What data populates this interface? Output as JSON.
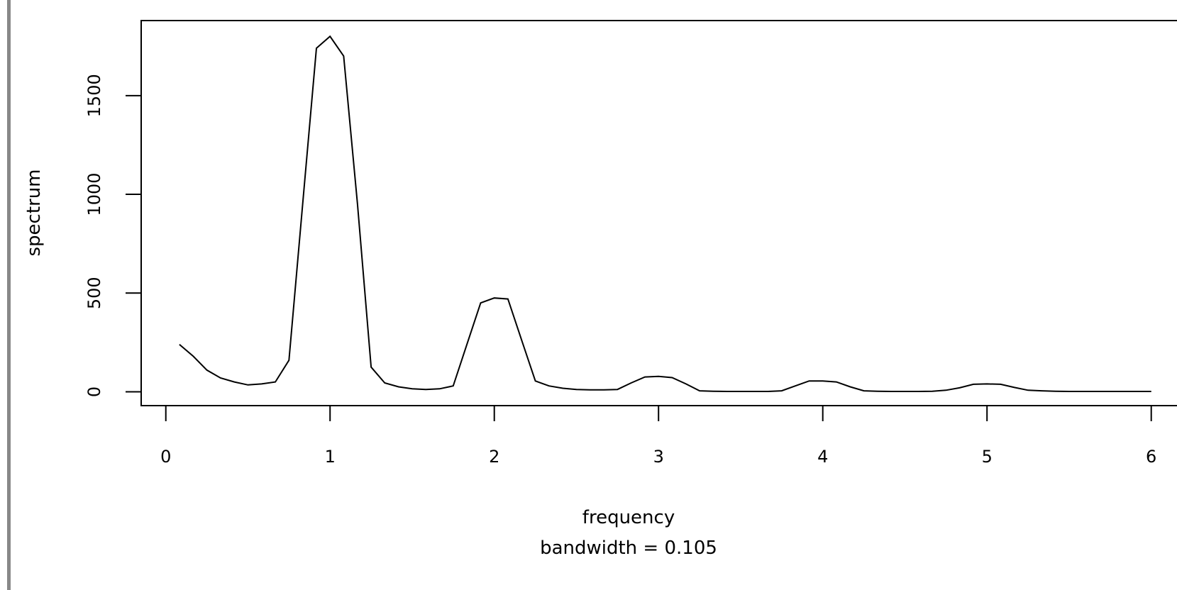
{
  "chart_data": {
    "type": "line",
    "title": "",
    "xlabel": "frequency",
    "sublabel": "bandwidth = 0.105",
    "ylabel": "spectrum",
    "xlim": [
      -0.15,
      6.2
    ],
    "ylim": [
      -70,
      1880
    ],
    "x_ticks": [
      "0",
      "1",
      "2",
      "3",
      "4",
      "5",
      "6"
    ],
    "y_ticks": [
      "0",
      "500",
      "1000",
      "1500"
    ],
    "grid": false,
    "series": [
      {
        "x": [
          0.083,
          0.167,
          0.25,
          0.333,
          0.417,
          0.5,
          0.583,
          0.667,
          0.75,
          0.833,
          0.917,
          1.0,
          1.083,
          1.167,
          1.25,
          1.333,
          1.417,
          1.5,
          1.583,
          1.667,
          1.75,
          1.833,
          1.917,
          2.0,
          2.083,
          2.167,
          2.25,
          2.333,
          2.417,
          2.5,
          2.583,
          2.667,
          2.75,
          2.833,
          2.917,
          3.0,
          3.083,
          3.167,
          3.25,
          3.333,
          3.417,
          3.5,
          3.583,
          3.667,
          3.75,
          3.833,
          3.917,
          4.0,
          4.083,
          4.167,
          4.25,
          4.333,
          4.417,
          4.5,
          4.583,
          4.667,
          4.75,
          4.833,
          4.917,
          5.0,
          5.083,
          5.167,
          5.25,
          5.333,
          5.417,
          5.5,
          5.583,
          5.667,
          5.75,
          5.833,
          5.917,
          6.0
        ],
        "y": [
          240,
          180,
          110,
          70,
          50,
          35,
          40,
          50,
          160,
          950,
          1740,
          1800,
          1700,
          950,
          125,
          45,
          25,
          15,
          12,
          15,
          30,
          240,
          450,
          475,
          470,
          260,
          55,
          30,
          18,
          12,
          10,
          10,
          12,
          45,
          75,
          78,
          72,
          40,
          5,
          3,
          2,
          2,
          2,
          2,
          5,
          30,
          55,
          55,
          50,
          25,
          5,
          3,
          2,
          2,
          2,
          3,
          8,
          20,
          38,
          40,
          38,
          22,
          8,
          5,
          3,
          2,
          2,
          2,
          2,
          2,
          2,
          2
        ]
      }
    ]
  }
}
